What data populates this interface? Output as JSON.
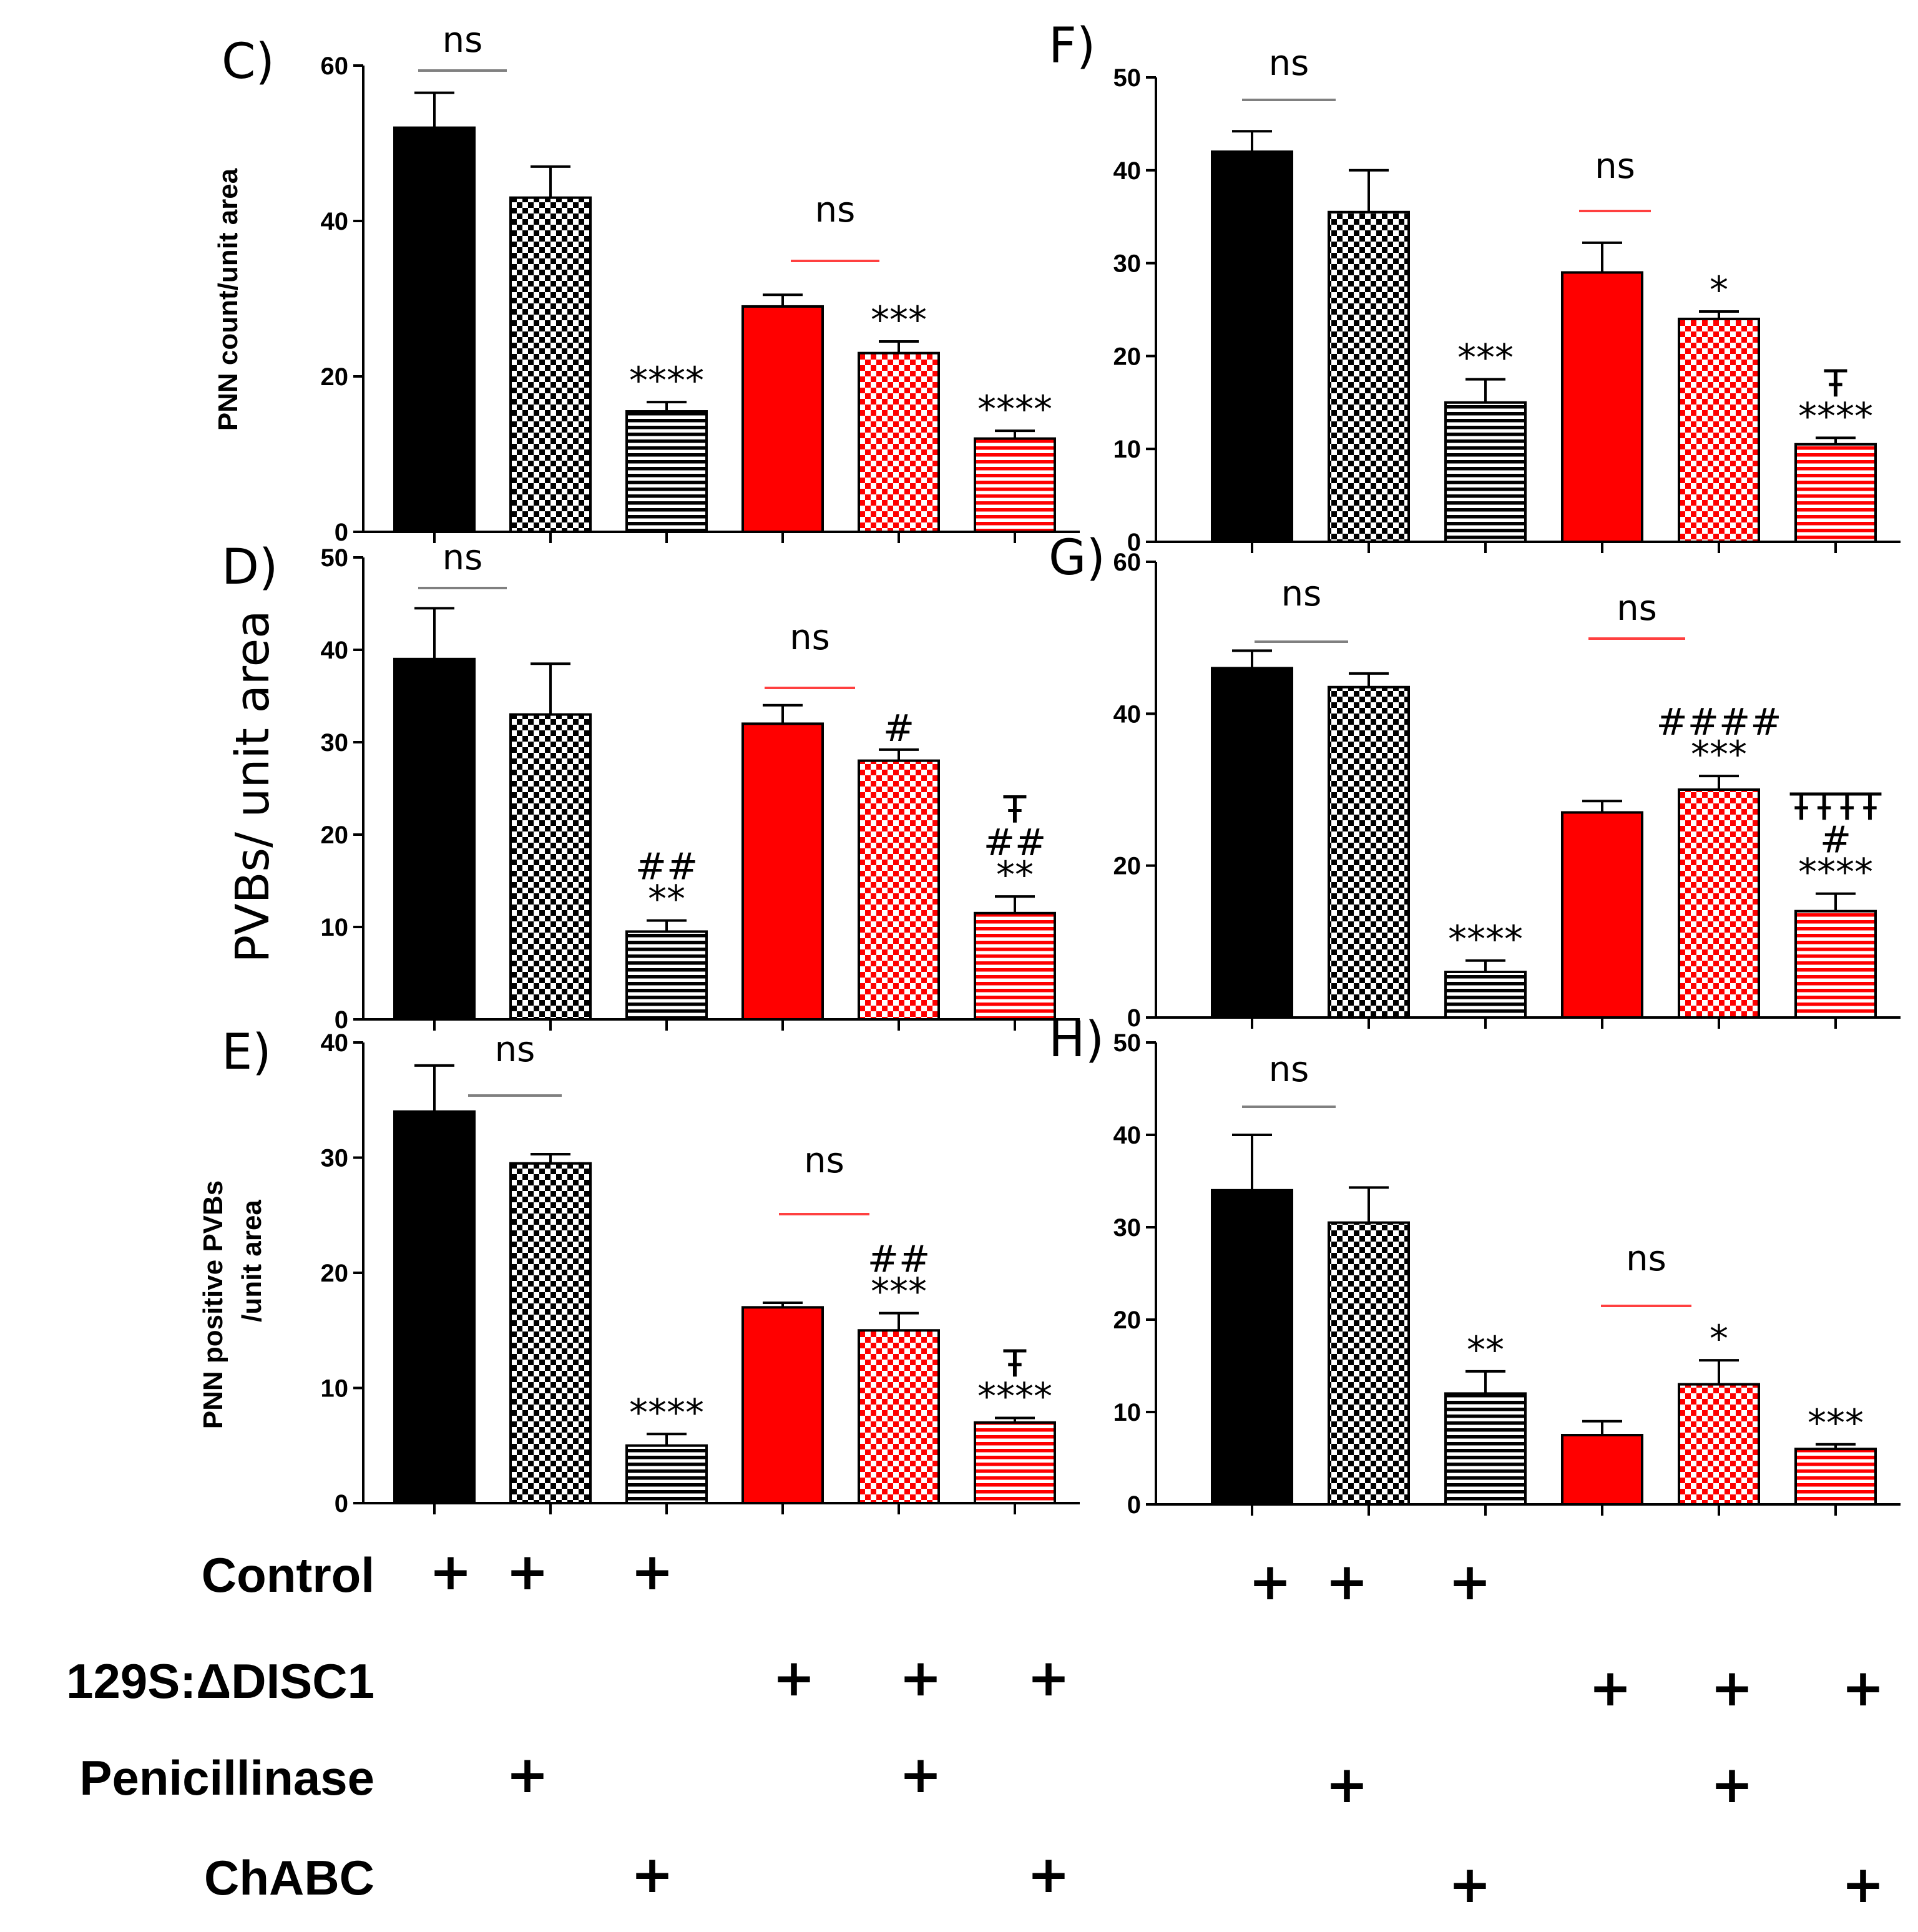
{
  "colors": {
    "black": "#000000",
    "red": "#ff0000",
    "white": "#ffffff",
    "ns_line_control": "#808080",
    "ns_line_disc1": "#ff4040"
  },
  "bar_fills": [
    "solid-black",
    "checker-black",
    "hstripe-black",
    "solid-red",
    "checker-red",
    "hstripe-red"
  ],
  "treatment_table": {
    "rows": [
      {
        "label": "Control",
        "marks": [
          "+",
          "+",
          "+",
          "",
          "",
          ""
        ]
      },
      {
        "label": "129S:ΔDISC1",
        "marks": [
          "",
          "",
          "",
          "+",
          "+",
          "+"
        ]
      },
      {
        "label": "Penicillinase",
        "marks": [
          "",
          "+",
          "",
          "",
          "+",
          ""
        ]
      },
      {
        "label": "ChABC",
        "marks": [
          "",
          "",
          "+",
          "",
          "",
          "+"
        ]
      }
    ]
  },
  "chart_data": [
    {
      "type": "bar",
      "panel": "C)",
      "ylabel": "PNN count/unit area",
      "ylim": [
        0,
        60
      ],
      "yticks": [
        0,
        20,
        40,
        60
      ],
      "values": [
        52,
        43,
        15.5,
        29,
        23,
        12
      ],
      "errors": [
        4.5,
        4,
        1.2,
        1.5,
        1.5,
        1
      ],
      "sig_labels": [
        [],
        [],
        [
          "****"
        ],
        [],
        [
          "***"
        ],
        [
          "****"
        ]
      ],
      "ns_labels": [
        "ns",
        "ns"
      ]
    },
    {
      "type": "bar",
      "panel": "D)",
      "ylabel": "PVBs/ unit area",
      "ylim": [
        0,
        50
      ],
      "yticks": [
        0,
        10,
        20,
        30,
        40,
        50
      ],
      "values": [
        39,
        33,
        9.5,
        32,
        28,
        11.5
      ],
      "errors": [
        5.5,
        5.5,
        1.2,
        2,
        1.2,
        1.8
      ],
      "sig_labels": [
        [],
        [],
        [
          "**",
          "##"
        ],
        [],
        [
          "#"
        ],
        [
          "**",
          "##",
          "Ŧ"
        ]
      ],
      "ns_labels": [
        "ns",
        "ns"
      ]
    },
    {
      "type": "bar",
      "panel": "E)",
      "ylabel": "PNN positive PVBs",
      "ylabel2": "/unit area",
      "ylim": [
        0,
        40
      ],
      "yticks": [
        0,
        10,
        20,
        30,
        40
      ],
      "values": [
        34,
        29.5,
        5,
        17,
        15,
        7
      ],
      "errors": [
        4,
        0.8,
        1,
        0.4,
        1.5,
        0.4
      ],
      "sig_labels": [
        [],
        [],
        [
          "****"
        ],
        [],
        [
          "***",
          "##"
        ],
        [
          "****",
          "Ŧ"
        ]
      ],
      "ns_labels": [
        "ns",
        "ns"
      ]
    },
    {
      "type": "bar",
      "panel": "F)",
      "ylabel": "",
      "ylim": [
        0,
        50
      ],
      "yticks": [
        0,
        10,
        20,
        30,
        40,
        50
      ],
      "values": [
        42,
        35.5,
        15,
        29,
        24,
        10.5
      ],
      "errors": [
        2.2,
        4.5,
        2.5,
        3.2,
        0.8,
        0.7
      ],
      "sig_labels": [
        [],
        [],
        [
          "***"
        ],
        [],
        [
          "*"
        ],
        [
          "****",
          "Ŧ"
        ]
      ],
      "ns_labels": [
        "ns",
        "ns"
      ]
    },
    {
      "type": "bar",
      "panel": "G)",
      "ylabel": "",
      "ylim": [
        0,
        60
      ],
      "yticks": [
        0,
        20,
        40,
        60
      ],
      "values": [
        46,
        43.5,
        6,
        27,
        30,
        14
      ],
      "errors": [
        2.3,
        1.8,
        1.5,
        1.5,
        1.8,
        2.3
      ],
      "sig_labels": [
        [],
        [],
        [
          "****"
        ],
        [],
        [
          "***",
          "####"
        ],
        [
          "****",
          "#",
          "ŦŦŦŦ"
        ]
      ],
      "ns_labels": [
        "ns",
        "ns"
      ]
    },
    {
      "type": "bar",
      "panel": "H)",
      "ylabel": "",
      "ylim": [
        0,
        50
      ],
      "yticks": [
        0,
        10,
        20,
        30,
        40,
        50
      ],
      "values": [
        34,
        30.5,
        12,
        7.5,
        13,
        6
      ],
      "errors": [
        6,
        3.8,
        2.4,
        1.5,
        2.6,
        0.5
      ],
      "sig_labels": [
        [],
        [],
        [
          "**"
        ],
        [],
        [
          "*"
        ],
        [
          "***"
        ]
      ],
      "ns_labels": [
        "ns",
        "ns"
      ]
    }
  ]
}
